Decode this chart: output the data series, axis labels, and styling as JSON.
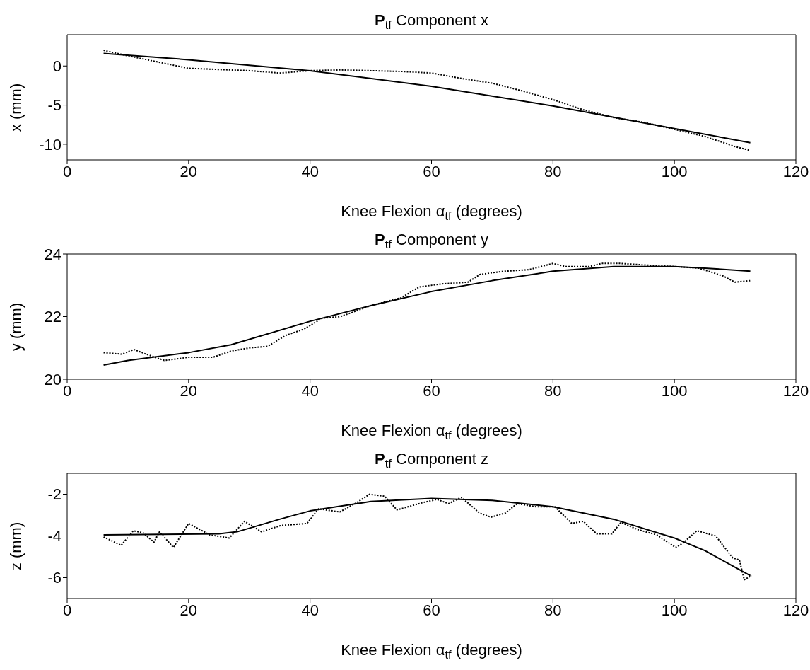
{
  "chart_data": [
    {
      "type": "line",
      "title": "P$_{tf}$ Component x",
      "xlabel": "Knee Flexion α$_{tf}$ (degrees)",
      "ylabel": "x (mm)",
      "xlim": [
        0,
        120
      ],
      "xticks": [
        0,
        20,
        40,
        60,
        80,
        100,
        120
      ],
      "ylim": [
        -12,
        4
      ],
      "yticks": [
        -10,
        -5,
        0
      ],
      "series": [
        {
          "color": "#000000",
          "line_style": "solid",
          "x": [
            6,
            20,
            40,
            60,
            80,
            100,
            112.5
          ],
          "values": [
            1.6,
            0.8,
            -0.6,
            -2.6,
            -5.1,
            -8.0,
            -9.8
          ]
        },
        {
          "color": "#000000",
          "line_style": "dotted",
          "x": [
            6,
            10,
            15,
            20,
            30,
            35,
            40,
            45,
            50,
            55,
            60,
            65,
            70,
            75,
            80,
            85,
            90,
            95,
            100,
            105,
            110,
            112.5
          ],
          "values": [
            2.0,
            1.3,
            0.5,
            -0.3,
            -0.6,
            -0.9,
            -0.6,
            -0.5,
            -0.6,
            -0.7,
            -0.9,
            -1.6,
            -2.2,
            -3.2,
            -4.3,
            -5.6,
            -6.6,
            -7.2,
            -8.1,
            -9.0,
            -10.3,
            -10.8
          ]
        }
      ]
    },
    {
      "type": "line",
      "title": "P$_{tf}$ Component y",
      "xlabel": "Knee Flexion α$_{tf}$ (degrees)",
      "ylabel": "y (mm)",
      "xlim": [
        0,
        120
      ],
      "xticks": [
        0,
        20,
        40,
        60,
        80,
        100,
        120
      ],
      "ylim": [
        20,
        24
      ],
      "yticks": [
        20,
        22,
        24
      ],
      "series": [
        {
          "color": "#000000",
          "line_style": "solid",
          "x": [
            6,
            10,
            20,
            27,
            40,
            50,
            60,
            70,
            80,
            90,
            100,
            105,
            112.5
          ],
          "values": [
            20.45,
            20.6,
            20.85,
            21.1,
            21.85,
            22.35,
            22.8,
            23.15,
            23.45,
            23.6,
            23.6,
            23.55,
            23.45
          ]
        },
        {
          "color": "#000000",
          "line_style": "dotted",
          "x": [
            6,
            9,
            11,
            13,
            16,
            20,
            24,
            27,
            30,
            33,
            36,
            39,
            42,
            45,
            50,
            55,
            58,
            62,
            66,
            68,
            72,
            76,
            80,
            82,
            86,
            88,
            91,
            95,
            100,
            104,
            108,
            110,
            112.5
          ],
          "values": [
            20.85,
            20.8,
            20.95,
            20.8,
            20.6,
            20.7,
            20.7,
            20.9,
            21.0,
            21.05,
            21.4,
            21.6,
            21.95,
            22.0,
            22.35,
            22.6,
            22.95,
            23.05,
            23.1,
            23.35,
            23.45,
            23.5,
            23.7,
            23.6,
            23.6,
            23.7,
            23.7,
            23.65,
            23.6,
            23.55,
            23.3,
            23.1,
            23.15
          ]
        }
      ]
    },
    {
      "type": "line",
      "title": "P$_{tf}$ Component z",
      "xlabel": "Knee Flexion α$_{tf}$ (degrees)",
      "ylabel": "z (mm)",
      "xlim": [
        0,
        120
      ],
      "xticks": [
        0,
        20,
        40,
        60,
        80,
        100,
        120
      ],
      "ylim": [
        -7,
        -1
      ],
      "yticks": [
        -6,
        -4,
        -2
      ],
      "series": [
        {
          "color": "#000000",
          "line_style": "solid",
          "x": [
            6,
            25,
            28,
            35,
            40,
            50,
            60,
            70,
            80,
            90,
            100,
            105,
            112.5
          ],
          "values": [
            -3.95,
            -3.9,
            -3.8,
            -3.2,
            -2.8,
            -2.35,
            -2.2,
            -2.3,
            -2.6,
            -3.2,
            -4.1,
            -4.7,
            -5.9
          ]
        },
        {
          "color": "#000000",
          "line_style": "dotted",
          "x": [
            6,
            8.9,
            10.9,
            12.5,
            14.3,
            15.2,
            17.5,
            20,
            23.5,
            26.7,
            29.2,
            32,
            35.2,
            39.5,
            41.4,
            44.9,
            47.7,
            49.8,
            52.3,
            54.3,
            58.6,
            60.9,
            62.8,
            64.9,
            67.9,
            69.8,
            72.2,
            74.1,
            77.2,
            80.3,
            83.1,
            85,
            87.2,
            89.7,
            91.2,
            94,
            97.1,
            100.2,
            101.4,
            103.7,
            106.8,
            109.6,
            110.7,
            111.5,
            112.7
          ],
          "values": [
            -4.05,
            -4.45,
            -3.75,
            -3.85,
            -4.3,
            -3.8,
            -4.55,
            -3.4,
            -3.95,
            -4.1,
            -3.3,
            -3.8,
            -3.5,
            -3.4,
            -2.7,
            -2.85,
            -2.4,
            -2.0,
            -2.1,
            -2.75,
            -2.4,
            -2.25,
            -2.45,
            -2.15,
            -2.9,
            -3.1,
            -2.9,
            -2.45,
            -2.6,
            -2.6,
            -3.4,
            -3.3,
            -3.9,
            -3.9,
            -3.35,
            -3.7,
            -3.95,
            -4.55,
            -4.35,
            -3.75,
            -4.0,
            -5.05,
            -5.15,
            -6.1,
            -5.9
          ]
        }
      ]
    }
  ]
}
